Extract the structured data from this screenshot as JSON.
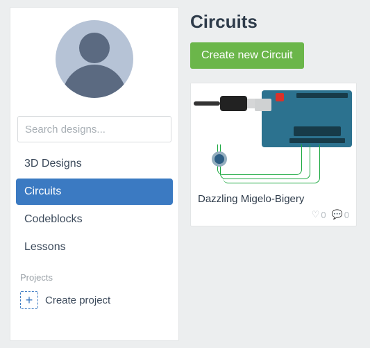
{
  "sidebar": {
    "search_placeholder": "Search designs...",
    "nav": [
      {
        "label": "3D Designs",
        "active": false
      },
      {
        "label": "Circuits",
        "active": true
      },
      {
        "label": "Codeblocks",
        "active": false
      },
      {
        "label": "Lessons",
        "active": false
      }
    ],
    "projects_label": "Projects",
    "create_project_label": "Create project"
  },
  "main": {
    "title": "Circuits",
    "create_button": "Create new Circuit",
    "card": {
      "title": "Dazzling Migelo-Bigery",
      "likes": "0",
      "comments": "0"
    }
  },
  "colors": {
    "page_bg": "#eceeef",
    "sidebar_bg": "#ffffff",
    "nav_active_bg": "#3b7ac2",
    "nav_text": "#3c4a5b",
    "btn_green": "#6bb64a",
    "board_blue": "#2c728f",
    "wire_green": "#1aa83f"
  }
}
